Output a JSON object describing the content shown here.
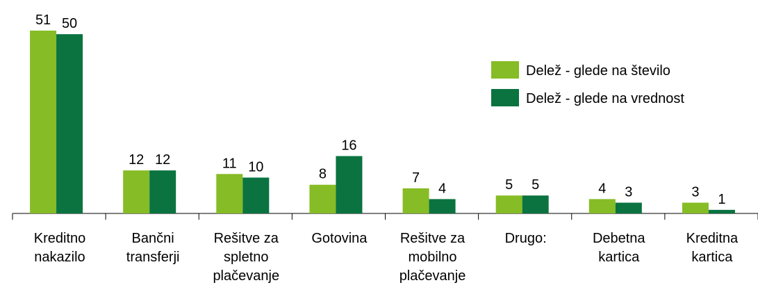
{
  "chart_data": {
    "type": "bar",
    "categories": [
      "Kreditno\nnakazilo",
      "Bančni\ntransferji",
      "Rešitve za\nspletno\nplačevanje",
      "Gotovina",
      "Rešitve za\nmobilno\nplačevanje",
      "Drugo:",
      "Debetna\nkartica",
      "Kreditna\nkartica"
    ],
    "series": [
      {
        "name": "Delež - glede na število",
        "color": "#86bc25",
        "values": [
          51,
          12,
          11,
          8,
          7,
          5,
          4,
          3
        ]
      },
      {
        "name": "Delež - glede na vrednost",
        "color": "#0a7340",
        "values": [
          50,
          12,
          10,
          16,
          4,
          5,
          3,
          1
        ]
      }
    ],
    "legend": "upper right"
  }
}
